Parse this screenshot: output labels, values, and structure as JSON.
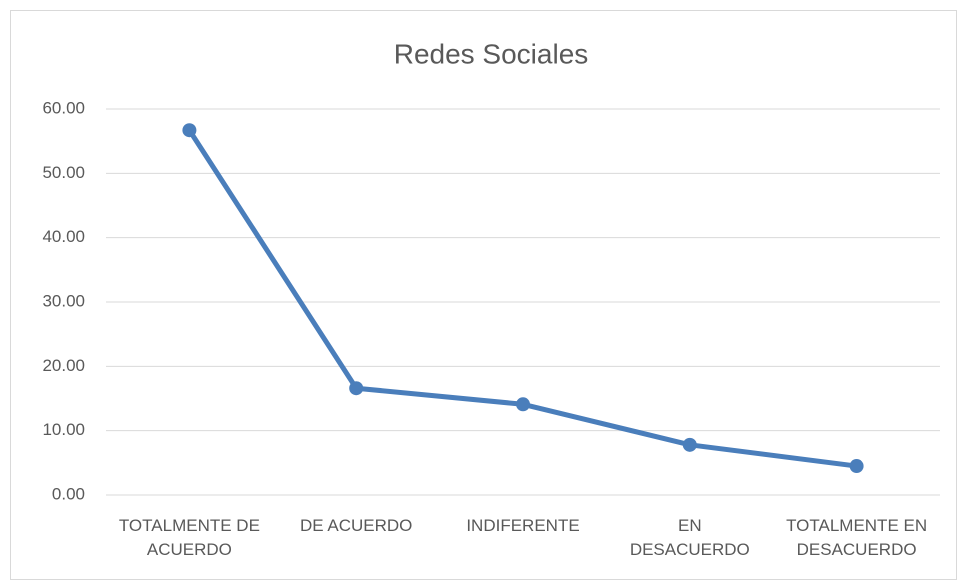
{
  "chart_data": {
    "type": "line",
    "title": "Redes Sociales",
    "categories": [
      "TOTALMENTE DE\nACUERDO",
      "DE ACUERDO",
      "INDIFERENTE",
      "EN\nDESACUERDO",
      "TOTALMENTE EN\nDESACUERDO"
    ],
    "series": [
      {
        "name": "Redes Sociales",
        "color": "#4a7ebb",
        "values": [
          56.7,
          16.6,
          14.1,
          7.8,
          4.5
        ]
      }
    ],
    "ylim": [
      0,
      60
    ],
    "yticks": [
      {
        "value": 0,
        "label": "0.00"
      },
      {
        "value": 10,
        "label": "10.00"
      },
      {
        "value": 20,
        "label": "20.00"
      },
      {
        "value": 30,
        "label": "30.00"
      },
      {
        "value": 40,
        "label": "40.00"
      },
      {
        "value": 50,
        "label": "50.00"
      },
      {
        "value": 60,
        "label": "60.00"
      }
    ],
    "grid": true
  }
}
